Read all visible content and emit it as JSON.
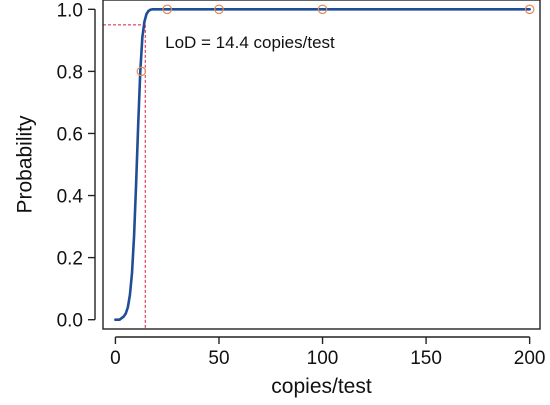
{
  "chart_data": {
    "type": "line",
    "xlabel": "copies/test",
    "ylabel": "Probability",
    "xlim": [
      -6,
      205
    ],
    "ylim": [
      -0.03,
      1.03
    ],
    "xticks": [
      0,
      50,
      100,
      150,
      200
    ],
    "yticks": [
      0.0,
      0.2,
      0.4,
      0.6,
      0.8,
      1.0
    ],
    "ytick_labels": [
      "0.0",
      "0.2",
      "0.4",
      "0.6",
      "0.8",
      "1.0"
    ],
    "grid": false,
    "series": [
      {
        "kind": "line",
        "color": "#1f4e96",
        "x": [
          0,
          2,
          4,
          5,
          6,
          7,
          8,
          9,
          10,
          11,
          12,
          13,
          14,
          15,
          16,
          17,
          18,
          19,
          20,
          22,
          25,
          30,
          40,
          50,
          100,
          150,
          200
        ],
        "y": [
          0.0,
          0.0,
          0.01,
          0.02,
          0.04,
          0.08,
          0.15,
          0.27,
          0.44,
          0.63,
          0.8,
          0.91,
          0.96,
          0.985,
          0.995,
          0.999,
          1.0,
          1.0,
          1.0,
          1.0,
          1.0,
          1.0,
          1.0,
          1.0,
          1.0,
          1.0,
          1.0
        ]
      },
      {
        "kind": "scatter",
        "color": "#e08d5c",
        "x": [
          12.5,
          25,
          50,
          100,
          200
        ],
        "y": [
          0.8,
          1.0,
          1.0,
          1.0,
          1.0
        ]
      }
    ],
    "reference_lines": {
      "color": "#d81b40",
      "x": 14.4,
      "y": 0.95
    },
    "annotation": {
      "text": "LoD = 14.4 copies/test",
      "x": 24,
      "y": 0.875
    }
  }
}
